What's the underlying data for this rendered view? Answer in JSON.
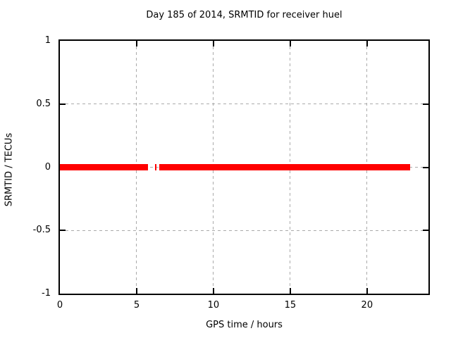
{
  "figure": {
    "title": "Day 185 of 2014, SRMTID for receiver huel",
    "xlabel": "GPS time / hours",
    "ylabel": "SRMTID / TECUs"
  },
  "colors": {
    "background": "#ffffff",
    "border": "#000000",
    "grid": "#aaaaaa",
    "text": "#000000",
    "series": "#ff0000"
  },
  "chart_data": {
    "type": "line",
    "title": "Day 185 of 2014, SRMTID for receiver huel",
    "xlabel": "GPS time / hours",
    "ylabel": "SRMTID / TECUs",
    "xlim": [
      0,
      24
    ],
    "ylim": [
      -1,
      1
    ],
    "xticks": [
      0,
      5,
      10,
      15,
      20
    ],
    "xtick_labels": [
      "0",
      "5",
      "10",
      "15",
      "20"
    ],
    "yticks": [
      -1,
      -0.5,
      0,
      0.5,
      1
    ],
    "ytick_labels": [
      "-1",
      "-0.5",
      "0",
      "0.5",
      "1"
    ],
    "grid": true,
    "legend": "none",
    "series": [
      {
        "name": "SRMTID",
        "color": "#ff0000",
        "y_value": 0,
        "segments_x_hours": [
          [
            0,
            5.75
          ],
          [
            6.2,
            6.3
          ],
          [
            6.45,
            22.8
          ]
        ]
      }
    ]
  }
}
